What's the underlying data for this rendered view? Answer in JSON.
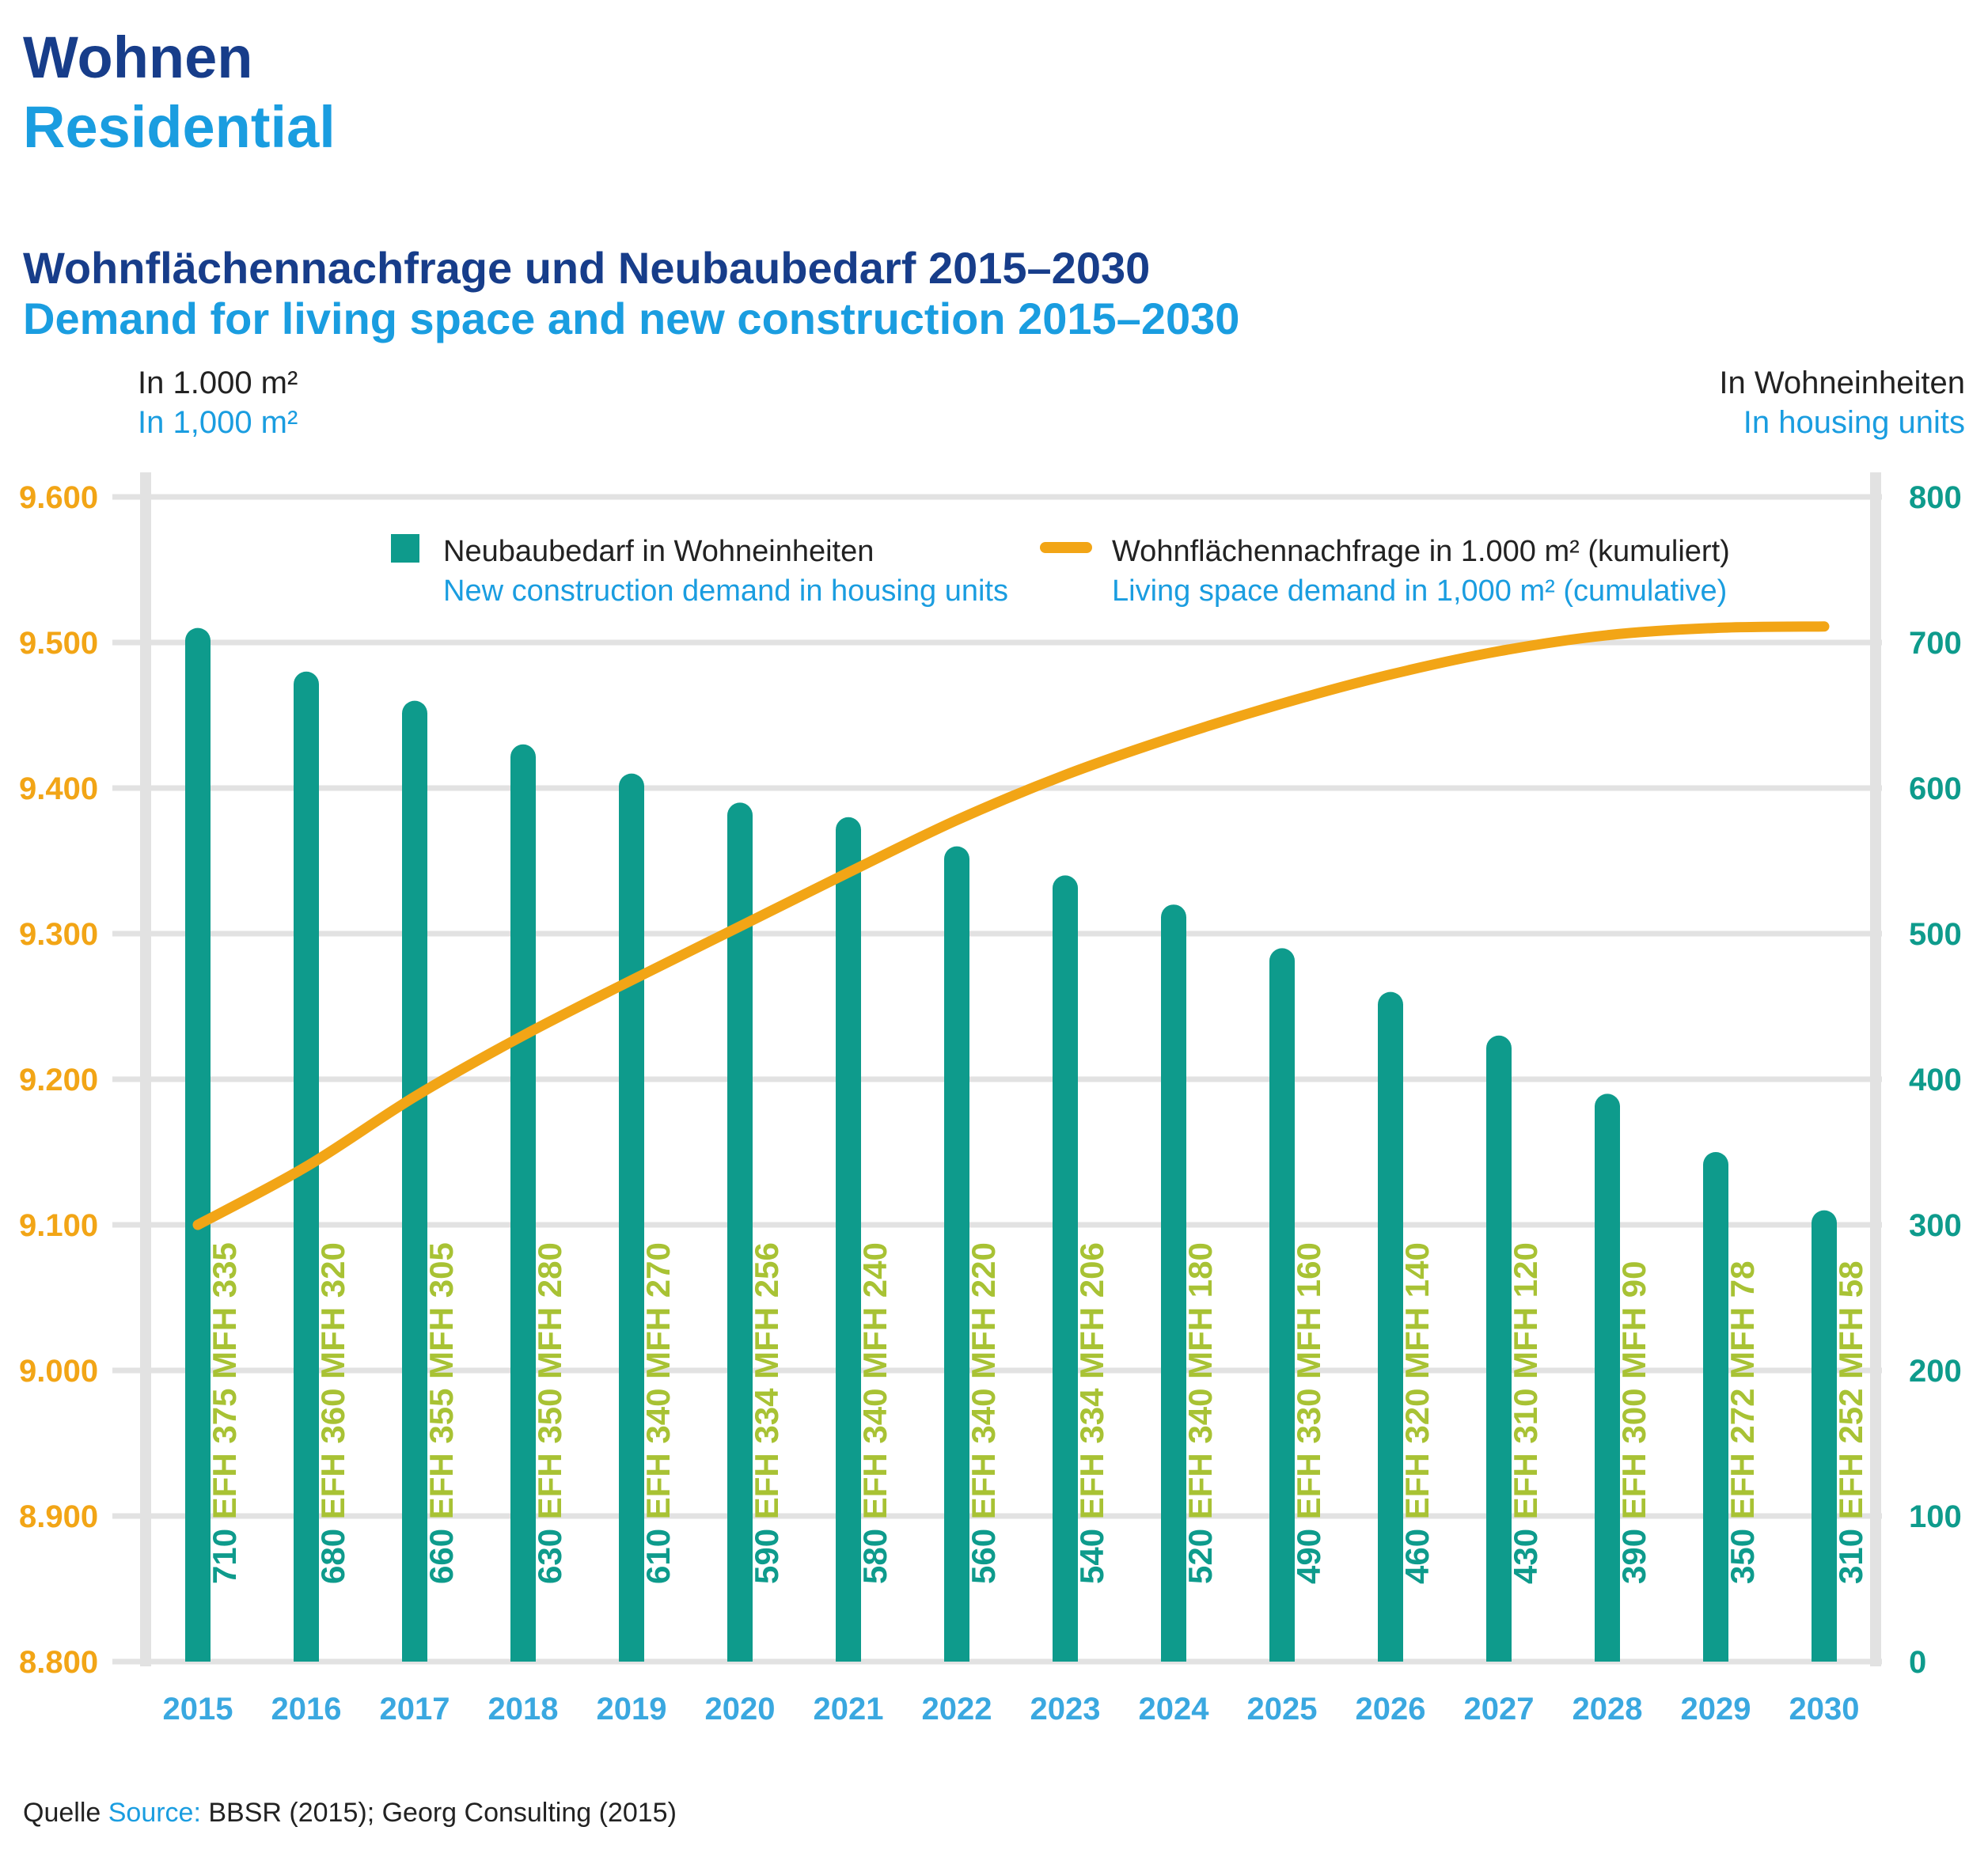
{
  "header": {
    "title_de": "Wohnen",
    "title_en": "Residential"
  },
  "chart_data": {
    "type": "bar",
    "title_de": "Wohnflächennachfrage und Neubaubedarf 2015–2030",
    "title_en": "Demand for living space and new construction 2015–2030",
    "y_left_label_de": "In 1.000 m²",
    "y_left_label_en": "In 1,000 m²",
    "y_right_label_de": "In Wohneinheiten",
    "y_right_label_en": "In housing units",
    "y_left_range": [
      8800,
      9600
    ],
    "y_left_ticks": [
      "8.800",
      "8.900",
      "9.000",
      "9.100",
      "9.200",
      "9.300",
      "9.400",
      "9.500",
      "9.600"
    ],
    "y_right_range": [
      0,
      800
    ],
    "y_right_ticks": [
      "0",
      "100",
      "200",
      "300",
      "400",
      "500",
      "600",
      "700",
      "800"
    ],
    "grid": true,
    "legend_position": "top",
    "categories": [
      "2015",
      "2016",
      "2017",
      "2018",
      "2019",
      "2020",
      "2021",
      "2022",
      "2023",
      "2024",
      "2025",
      "2026",
      "2027",
      "2028",
      "2029",
      "2030"
    ],
    "series": [
      {
        "name": "Neubaubedarf in Wohneinheiten",
        "name_en": "New construction demand in housing units",
        "kind": "bar",
        "axis": "right",
        "color": "#0e9b8c",
        "values": [
          710,
          680,
          660,
          630,
          610,
          590,
          580,
          560,
          540,
          520,
          490,
          460,
          430,
          390,
          350,
          310
        ]
      },
      {
        "name": "Wohnflächennachfrage in 1.000 m² (kumuliert)",
        "name_en": "Living space demand in 1,000 m² (cumulative)",
        "kind": "line",
        "axis": "left",
        "color": "#f2a516",
        "values": [
          9100,
          9140,
          9188,
          9230,
          9268,
          9305,
          9342,
          9378,
          9409,
          9435,
          9458,
          9478,
          9494,
          9505,
          9510,
          9511
        ]
      }
    ],
    "bar_labels": {
      "totals": [
        "710",
        "680",
        "660",
        "630",
        "610",
        "590",
        "580",
        "560",
        "540",
        "520",
        "490",
        "460",
        "430",
        "390",
        "350",
        "310"
      ],
      "splits": [
        "EFH 375 MFH 335",
        "EFH 360 MFH 320",
        "EFH 355 MFH 305",
        "EFH 350 MFH 280",
        "EFH 340 MFH 270",
        "EFH 334 MFH 256",
        "EFH 340 MFH 240",
        "EFH 340 MFH 220",
        "EFH 334 MFH 206",
        "EFH 340 MFH 180",
        "EFH 330 MFH 160",
        "EFH 320 MFH 140",
        "EFH 310 MFH 120",
        "EFH 300 MFH 90",
        "EFH 272 MFH 78",
        "EFH 252 MFH 58"
      ]
    }
  },
  "source": {
    "label_de": "Quelle",
    "label_en": "Source:",
    "text": "BBSR (2015); Georg Consulting (2015)"
  },
  "colors": {
    "dark_blue": "#173d8a",
    "light_blue": "#1a9de0",
    "teal": "#0e9b8c",
    "orange": "#f2a516",
    "lime": "#a8c234",
    "grid": "#e2e2e2"
  }
}
